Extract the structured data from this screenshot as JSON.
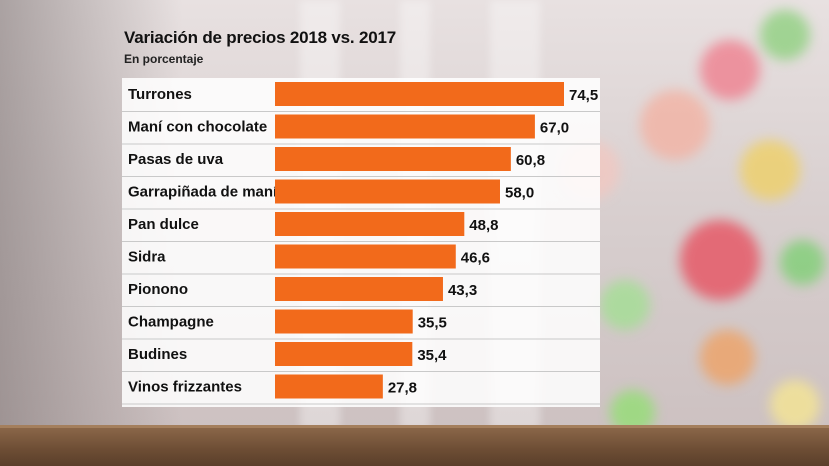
{
  "chart_data": {
    "type": "bar",
    "orientation": "horizontal",
    "title": "Variación de precios 2018 vs. 2017",
    "subtitle": "En porcentaje",
    "categories": [
      "Turrones",
      "Maní con chocolate",
      "Pasas de uva",
      "Garrapiñada de maní",
      "Pan dulce",
      "Sidra",
      "Pionono",
      "Champagne",
      "Budines",
      "Vinos frizzantes"
    ],
    "values": [
      74.5,
      67.0,
      60.8,
      58.0,
      48.8,
      46.6,
      43.3,
      35.5,
      35.4,
      27.8
    ],
    "value_labels": [
      "74,5",
      "67,0",
      "60,8",
      "58,0",
      "48,8",
      "46,6",
      "43,3",
      "35,5",
      "35,4",
      "27,8"
    ],
    "xlim": [
      0,
      80
    ],
    "grid": false,
    "bar_color": "#f26a1b"
  }
}
